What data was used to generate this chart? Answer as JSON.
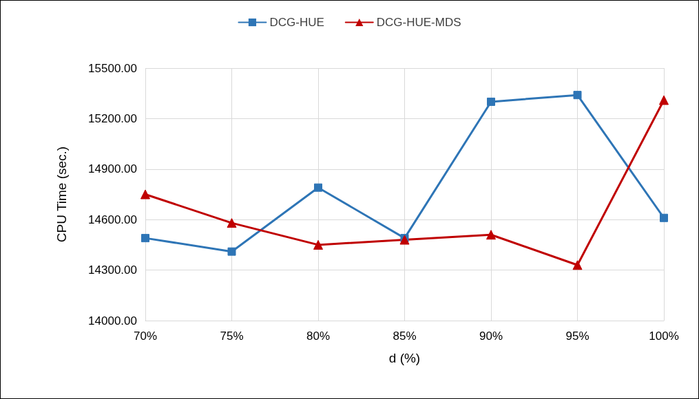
{
  "chart_data": {
    "type": "line",
    "xlabel": "d (%)",
    "ylabel": "CPU Time (sec.)",
    "categories": [
      "70%",
      "75%",
      "80%",
      "85%",
      "90%",
      "95%",
      "100%"
    ],
    "series": [
      {
        "name": "DCG-HUE",
        "color": "#2e75b6",
        "marker": "square",
        "values": [
          14490,
          14410,
          14790,
          14490,
          15300,
          15340,
          14610
        ]
      },
      {
        "name": "DCG-HUE-MDS",
        "color": "#c00000",
        "marker": "triangle",
        "values": [
          14750,
          14580,
          14450,
          14480,
          14510,
          14330,
          15310
        ]
      }
    ],
    "ylim": [
      14000,
      15500
    ],
    "yticks": [
      {
        "value": 14000,
        "label": "14000.00"
      },
      {
        "value": 14300,
        "label": "14300.00"
      },
      {
        "value": 14600,
        "label": "14600.00"
      },
      {
        "value": 14900,
        "label": "14900.00"
      },
      {
        "value": 15200,
        "label": "15200.00"
      },
      {
        "value": 15500,
        "label": "15500.00"
      }
    ],
    "grid": true,
    "legend": "top",
    "line_style": "solid"
  }
}
